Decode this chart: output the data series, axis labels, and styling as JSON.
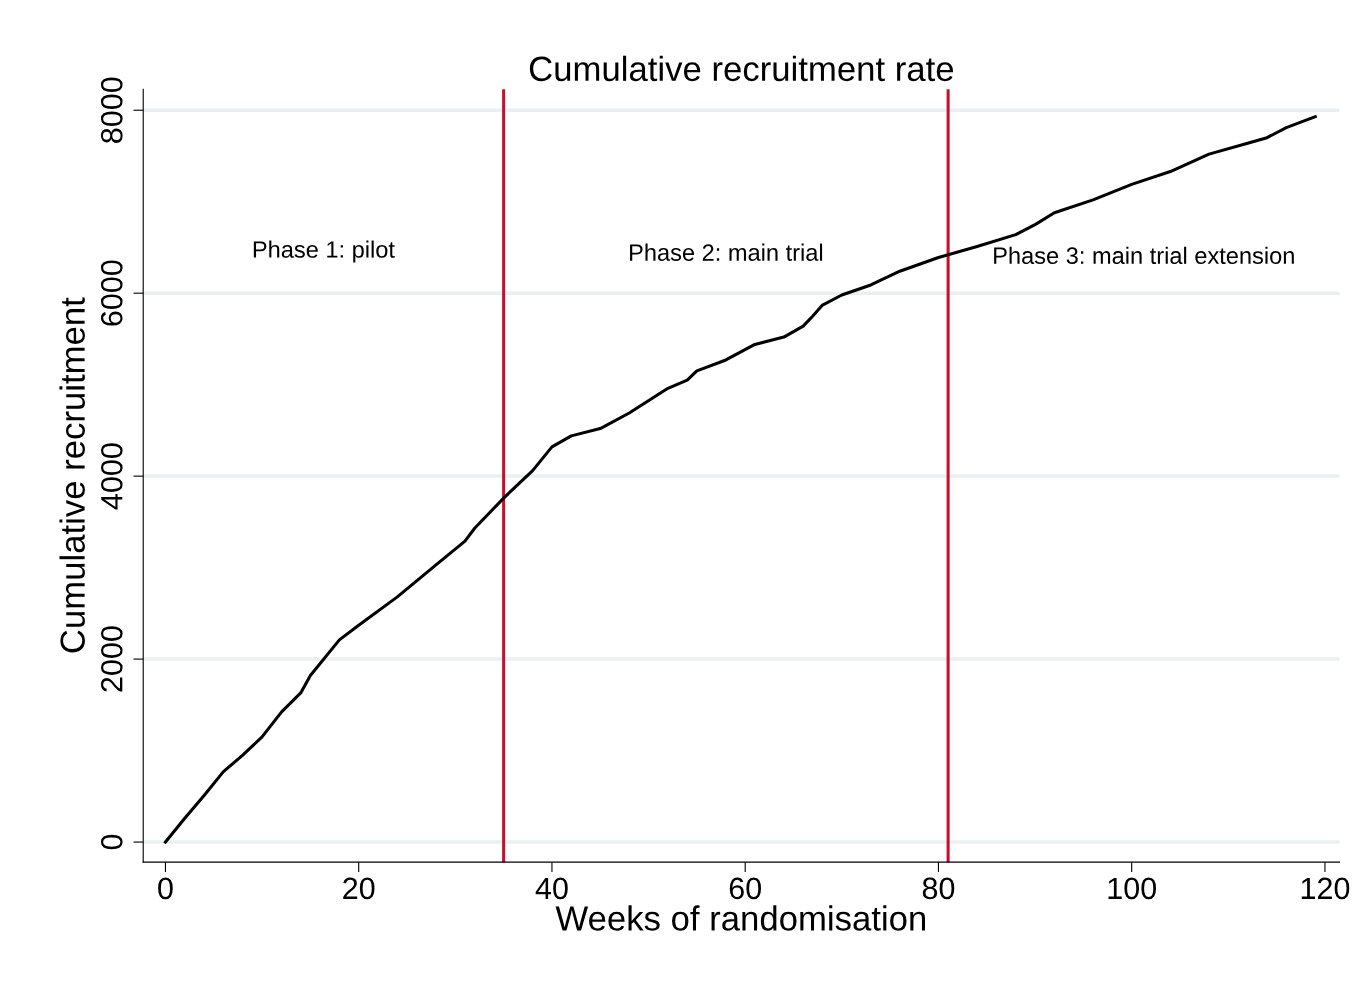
{
  "chart_data": {
    "type": "line",
    "title": "Cumulative recruitment rate",
    "xlabel": "Weeks of randomisation",
    "ylabel": "Cumulative recruitment",
    "x": [
      0,
      2,
      4,
      6,
      8,
      10,
      12,
      14,
      15,
      18,
      20,
      24,
      28,
      31,
      32,
      35,
      38,
      40,
      42,
      45,
      48,
      52,
      54,
      55,
      58,
      61,
      64,
      66,
      67,
      68,
      70,
      73,
      76,
      80,
      84,
      88,
      90,
      92,
      96,
      100,
      104,
      108,
      112,
      114,
      116,
      119
    ],
    "series": [
      {
        "color": "#000000",
        "values": [
          0,
          260,
          510,
          770,
          950,
          1150,
          1420,
          1630,
          1820,
          2210,
          2370,
          2680,
          3030,
          3290,
          3430,
          3760,
          4060,
          4320,
          4440,
          4520,
          4690,
          4960,
          5050,
          5150,
          5270,
          5440,
          5520,
          5640,
          5750,
          5870,
          5980,
          6090,
          6240,
          6390,
          6510,
          6640,
          6750,
          6880,
          7020,
          7190,
          7330,
          7520,
          7640,
          7700,
          7810,
          7930
        ]
      }
    ],
    "xlim": [
      -2.3,
      121.5
    ],
    "ylim": [
      -220,
      8230
    ],
    "xticks": [
      0,
      20,
      40,
      60,
      80,
      100,
      120
    ],
    "yticks": [
      0,
      2000,
      4000,
      6000,
      8000
    ],
    "grid": "y",
    "marker": "none",
    "line_style": "solid",
    "ref_lines": [
      {
        "axis": "x",
        "value": 35,
        "color": "#c8102e"
      },
      {
        "axis": "x",
        "value": 81,
        "color": "#c8102e"
      }
    ],
    "annotations": [
      "Phase 1: pilot",
      "Phase 2: main trial",
      "Phase 3: main trial extension"
    ]
  }
}
